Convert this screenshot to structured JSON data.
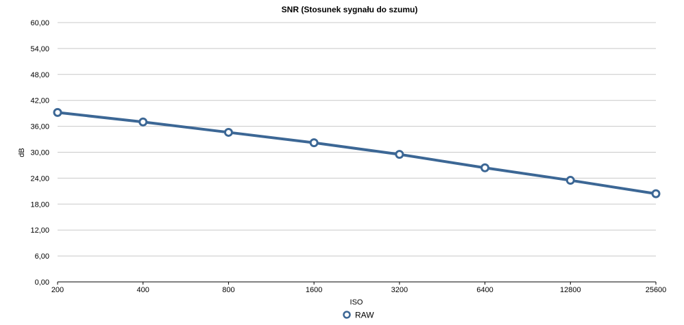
{
  "chart_data": {
    "type": "line",
    "title": "SNR (Stosunek sygnału do szumu)",
    "xlabel": "ISO",
    "ylabel": "dB",
    "categories": [
      "200",
      "400",
      "800",
      "1600",
      "3200",
      "6400",
      "12800",
      "25600"
    ],
    "series": [
      {
        "name": "RAW",
        "values": [
          39.2,
          37.0,
          34.6,
          32.2,
          29.5,
          26.4,
          23.5,
          20.4
        ]
      }
    ],
    "yticks": [
      "0,00",
      "6,00",
      "12,00",
      "18,00",
      "24,00",
      "30,00",
      "36,00",
      "42,00",
      "48,00",
      "54,00",
      "60,00"
    ],
    "ylim": [
      0,
      60
    ],
    "grid": true,
    "legend_position": "bottom",
    "colors": {
      "series": "#3c6795",
      "marker_fill": "#ffffff",
      "grid": "#c8c8c8",
      "axis": "#000000"
    }
  }
}
